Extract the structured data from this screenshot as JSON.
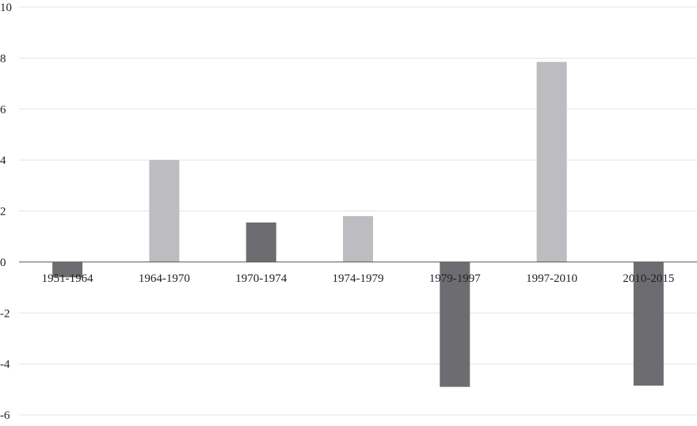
{
  "chart_data": {
    "type": "bar",
    "categories": [
      "1951-1964",
      "1964-1970",
      "1970-1974",
      "1974-1979",
      "1979-1997",
      "1997-2010",
      "2010-2015"
    ],
    "values": [
      -0.6,
      4.0,
      1.55,
      1.8,
      -4.9,
      7.85,
      -4.85
    ],
    "bar_colors": [
      "#6d6c70",
      "#bdbcc0",
      "#6d6c70",
      "#bdbcc0",
      "#6d6c70",
      "#bdbcc0",
      "#6d6c70"
    ],
    "ylim": [
      -6,
      10
    ],
    "yticks": [
      10,
      8,
      6,
      4,
      2,
      0,
      -2,
      -4,
      -6
    ],
    "ytick_labels": [
      "10",
      "8",
      "6",
      "4",
      "2",
      "0",
      "-2",
      "-4",
      "-6"
    ],
    "grid": true,
    "title": "",
    "xlabel": "",
    "ylabel": ""
  }
}
